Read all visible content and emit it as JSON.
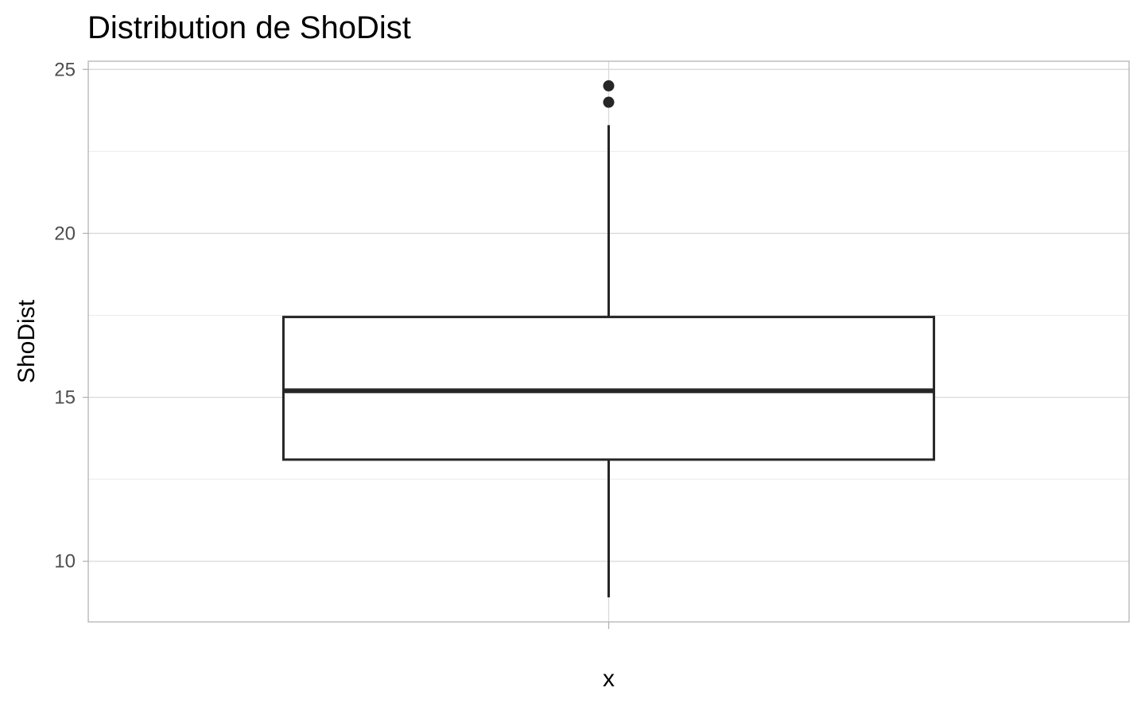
{
  "chart_data": {
    "type": "boxplot",
    "title": "Distribution de ShoDist",
    "xlabel": "x",
    "ylabel": "ShoDist",
    "ylim": [
      8.15,
      25.25
    ],
    "y_ticks": [
      10,
      15,
      20,
      25
    ],
    "y_tick_labels": [
      "10",
      "15",
      "20",
      "25"
    ],
    "y_minor_ticks": [
      12.5,
      17.5,
      22.5
    ],
    "grid": true,
    "boxes": [
      {
        "category": "",
        "lower_whisker": 8.9,
        "q1": 13.1,
        "median": 15.2,
        "q3": 17.45,
        "upper_whisker": 23.3,
        "outliers": [
          24.0,
          24.5
        ]
      }
    ],
    "colors": {
      "box_stroke": "#262626",
      "box_fill": "#ffffff",
      "grid_major": "#d9d9d9",
      "grid_minor": "#ebebeb",
      "panel_border": "#b3b3b3",
      "tick_text": "#4d4d4d"
    }
  }
}
